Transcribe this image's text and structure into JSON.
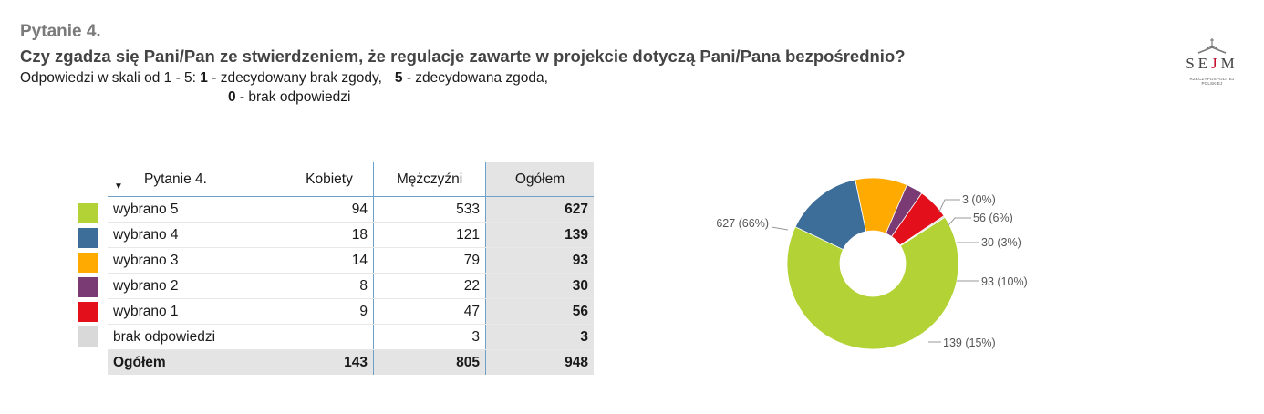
{
  "header": {
    "question_number": "Pytanie 4.",
    "question_text": "Czy zgadza się Pani/Pan ze stwierdzeniem, że regulacje zawarte w projekcie dotyczą Pani/Pana  bezpośrednio?",
    "scale_intro": "Odpowiedzi w skali od 1 - 5: ",
    "scale_1_num": "1",
    "scale_1_text": " - zdecydowany brak zgody,",
    "scale_5_num": "5",
    "scale_5_text": " - zdecydowana zgoda,",
    "scale_0_num": "0",
    "scale_0_text": " - brak odpowiedzi"
  },
  "logo": {
    "word_left": "SE",
    "word_j": "J",
    "word_right": "M",
    "subtitle": "RZECZYPOSPOLITEJ POLSKIEJ"
  },
  "table": {
    "headers": [
      "Pytanie 4.",
      "Kobiety",
      "Mężczyźni",
      "Ogółem"
    ],
    "rows": [
      {
        "label": "wybrano 5",
        "kobiety": "94",
        "mezczyzni": "533",
        "ogolem": "627",
        "color": "#b2d235"
      },
      {
        "label": "wybrano 4",
        "kobiety": "18",
        "mezczyzni": "121",
        "ogolem": "139",
        "color": "#3d6e99"
      },
      {
        "label": "wybrano 3",
        "kobiety": "14",
        "mezczyzni": "79",
        "ogolem": "93",
        "color": "#ffaa00"
      },
      {
        "label": "wybrano 2",
        "kobiety": "8",
        "mezczyzni": "22",
        "ogolem": "30",
        "color": "#7a3a73"
      },
      {
        "label": "wybrano 1",
        "kobiety": "9",
        "mezczyzni": "47",
        "ogolem": "56",
        "color": "#e3101b"
      },
      {
        "label": "brak odpowiedzi",
        "kobiety": "",
        "mezczyzni": "3",
        "ogolem": "3",
        "color": "#d9d9d9"
      }
    ],
    "total": {
      "label": "Ogółem",
      "kobiety": "143",
      "mezczyzni": "805",
      "ogolem": "948"
    }
  },
  "chart_data": {
    "type": "pie",
    "donut": true,
    "categories": [
      "wybrano 5",
      "wybrano 4",
      "wybrano 3",
      "wybrano 2",
      "wybrano 1",
      "brak odpowiedzi"
    ],
    "values": [
      627,
      139,
      93,
      30,
      56,
      3
    ],
    "colors": [
      "#b2d235",
      "#3d6e99",
      "#ffaa00",
      "#7a3a73",
      "#e3101b",
      "#d9d9d9"
    ],
    "slice_labels": [
      "627 (66%)",
      "139 (15%)",
      "93 (10%)",
      "30 (3%)",
      "56 (6%)",
      "3 (0%)"
    ]
  }
}
